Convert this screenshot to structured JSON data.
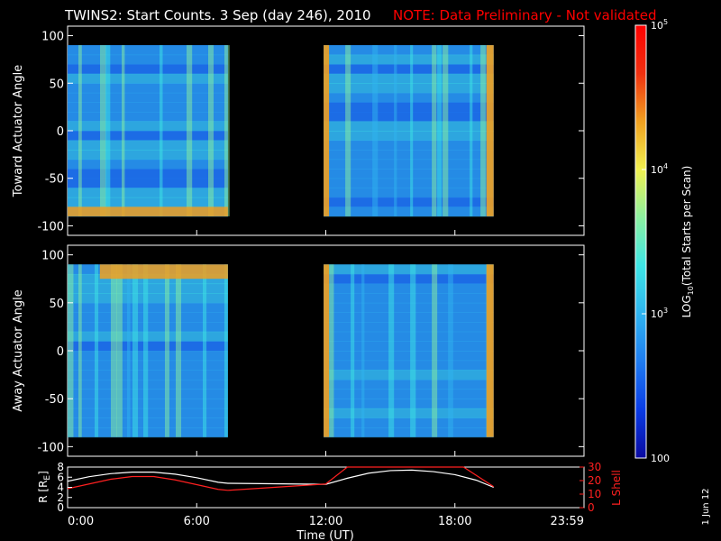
{
  "header": {
    "title": "TWINS2: Start Counts.  3 Sep (day 246), 2010",
    "note": "NOTE: Data Preliminary - Not validated",
    "note_color": "#ff0000"
  },
  "side_stamp": "1 Jun 12",
  "chart_data": [
    {
      "type": "heatmap",
      "panel": "toward",
      "ylabel": "Toward Actuator Angle",
      "ylim": [
        -110,
        110
      ],
      "yticks": [
        "100",
        "50",
        "0",
        "-50",
        "-100"
      ],
      "x_unit": "hours UT",
      "xlim": [
        0,
        24
      ],
      "data_blocks": [
        {
          "x": [
            0.0,
            7.45
          ],
          "y": [
            -90,
            90
          ]
        },
        {
          "x": [
            11.9,
            19.8
          ],
          "y": [
            -90,
            90
          ]
        }
      ],
      "bright_band": {
        "y": [
          -90,
          -80
        ],
        "x": [
          0.0,
          7.45
        ]
      }
    },
    {
      "type": "heatmap",
      "panel": "away",
      "ylabel": "Away Actuator Angle",
      "ylim": [
        -110,
        110
      ],
      "yticks": [
        "100",
        "50",
        "0",
        "-50",
        "-100"
      ],
      "x_unit": "hours UT",
      "xlim": [
        0,
        24
      ],
      "data_blocks": [
        {
          "x": [
            0.0,
            7.45
          ],
          "y": [
            -90,
            90
          ]
        },
        {
          "x": [
            11.9,
            19.8
          ],
          "y": [
            -90,
            90
          ]
        }
      ],
      "bright_band": {
        "y": [
          75,
          90
        ],
        "x": [
          1.5,
          7.45
        ]
      }
    },
    {
      "type": "line",
      "panel": "orbit",
      "ylabel_left": "R [R",
      "ylabel_left_sub": "E",
      "ylabel_left_end": "]",
      "ylabel_right": "L Shell",
      "ylim_left": [
        0,
        8
      ],
      "ylim_right": [
        0,
        30
      ],
      "yticks_left": [
        "8",
        "6",
        "4",
        "2",
        "0"
      ],
      "yticks_right": [
        "30",
        "20",
        "10",
        "0"
      ],
      "xlabel": "Time (UT)",
      "xticks": [
        "0:00",
        "6:00",
        "12:00",
        "18:00",
        "23:59"
      ],
      "xlim": [
        0,
        24
      ],
      "series": [
        {
          "color": "#ffffff",
          "x": [
            0,
            1,
            2,
            3,
            4,
            5,
            6,
            7,
            7.45,
            12,
            13,
            14,
            15,
            16,
            17,
            18,
            19,
            19.8
          ],
          "y": [
            5.2,
            6.1,
            6.7,
            7.0,
            7.0,
            6.6,
            5.9,
            5.0,
            4.8,
            4.6,
            5.8,
            6.8,
            7.3,
            7.4,
            7.1,
            6.5,
            5.4,
            4.0
          ]
        },
        {
          "color": "#ff2020",
          "x": [
            0,
            1,
            2,
            3,
            4,
            5,
            6,
            7,
            7.45,
            12,
            13.0,
            18.4,
            19.8
          ],
          "y_lshell": [
            14.0,
            17.5,
            21.0,
            23.0,
            23.0,
            20.5,
            17.0,
            13.5,
            12.8,
            17.5,
            31,
            31,
            15.5
          ]
        }
      ]
    }
  ],
  "colorbar": {
    "label": "LOG",
    "label_sub": "10",
    "label_rest": "(Total Starts per Scan)",
    "ticks": [
      {
        "base": "10",
        "exp": "5",
        "value": 100000
      },
      {
        "base": "10",
        "exp": "4",
        "value": 10000
      },
      {
        "base": "10",
        "exp": "3",
        "value": 1000
      },
      {
        "base": "100",
        "exp": "",
        "value": 100
      }
    ],
    "min": 100,
    "max": 100000,
    "colors": [
      "#0a0aa0",
      "#0a3ce6",
      "#1f7cf0",
      "#2fb4f0",
      "#3ee6e6",
      "#8cf0a0",
      "#f0f050",
      "#f0a020",
      "#f03010",
      "#ff0000"
    ]
  }
}
